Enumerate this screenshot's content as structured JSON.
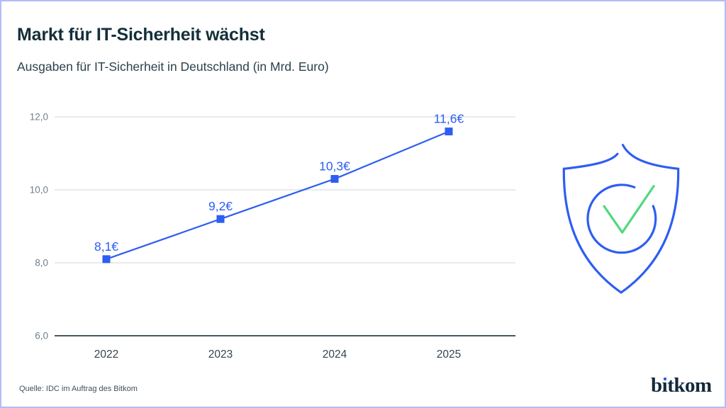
{
  "header": {
    "title": "Markt für IT-Sicherheit wächst",
    "subtitle": "Ausgaben für IT-Sicherheit in Deutschland (in Mrd. Euro)"
  },
  "chart_data": {
    "type": "line",
    "title": "Markt für IT-Sicherheit wächst",
    "subtitle": "Ausgaben für IT-Sicherheit in Deutschland (in Mrd. Euro)",
    "xlabel": "",
    "ylabel": "",
    "categories": [
      "2022",
      "2023",
      "2024",
      "2025"
    ],
    "values": [
      8.1,
      9.2,
      10.3,
      11.6
    ],
    "point_labels": [
      "8,1€",
      "9,2€",
      "10,3€",
      "11,6€"
    ],
    "ylim": [
      6.0,
      12.0
    ],
    "yticks": [
      {
        "value": 6.0,
        "label": "6,0"
      },
      {
        "value": 8.0,
        "label": "8,0"
      },
      {
        "value": 10.0,
        "label": "10,0"
      },
      {
        "value": 12.0,
        "label": "12,0"
      }
    ],
    "grid": true,
    "legend": false,
    "marker": "square",
    "line_color": "#2d5ef2"
  },
  "icon": {
    "name": "shield-check",
    "shield_color": "#2d5ef2",
    "check_color": "#4fd97e"
  },
  "footer": {
    "source": "Quelle: IDC im Auftrag des Bitkom",
    "logo": {
      "prefix": "b",
      "i_dotless": "ı",
      "suffix": "tkom"
    }
  },
  "colors": {
    "title_text": "#142f3a",
    "subtitle_text": "#2c414c",
    "grid": "#d2d5d8",
    "axis": "#47585f",
    "ytick_text": "#70808a",
    "xtick_text": "#33454e",
    "source_text": "#3e525c",
    "accent_blue": "#2d5ef2",
    "check_green": "#4fd97e",
    "page_border": "#b3bdf8",
    "logo_text": "#13293b"
  }
}
